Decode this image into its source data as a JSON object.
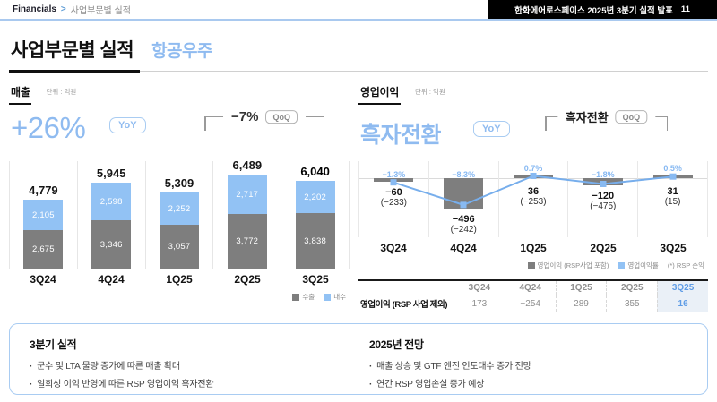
{
  "header": {
    "breadcrumb": {
      "root": "Financials",
      "separator": ">",
      "current": "사업부문별 실적"
    },
    "deck_title": "한화에어로스페이스 2025년 3분기 실적 발표",
    "page_number": "11"
  },
  "title": {
    "main": "사업부문별 실적",
    "segment": "항공우주"
  },
  "colors": {
    "accent_blue": "#8FBBF0",
    "bar_blue": "#92C2F4",
    "bar_gray": "#7E7E7E",
    "line_blue": "#77AEEC",
    "table_highlight_bg": "#EAF0F7",
    "table_highlight_text": "#5E9CE6"
  },
  "revenue": {
    "section_label": "매출",
    "unit_label": "단위 : 억원",
    "yoy_value": "+26%",
    "yoy_badge": "YoY",
    "qoq_value": "−7%",
    "qoq_badge": "QoQ",
    "legend": [
      {
        "label": "수출",
        "color": "#7E7E7E"
      },
      {
        "label": "내수",
        "color": "#92C2F4"
      }
    ]
  },
  "profit": {
    "section_label": "영업이익",
    "unit_label": "단위 : 억원",
    "yoy_value": "흑자전환",
    "yoy_badge": "YoY",
    "qoq_value": "흑자전환",
    "qoq_badge": "QoQ",
    "legend": [
      {
        "label": "영업이익 (RSP사업 포함)",
        "color": "#7E7E7E"
      },
      {
        "label": "영업이익률",
        "color": "#92C2F4"
      },
      {
        "label": "(*) RSP 손익",
        "color": null
      }
    ],
    "table": {
      "row_label": "영업이익 (RSP 사업 제외)",
      "columns": [
        "3Q24",
        "4Q24",
        "1Q25",
        "2Q25",
        "3Q25"
      ],
      "values": [
        "173",
        "−254",
        "289",
        "355",
        "16"
      ],
      "highlight_index": 4
    }
  },
  "chart_data": [
    {
      "id": "revenue",
      "type": "bar",
      "stacked": true,
      "title": "매출",
      "unit": "억원",
      "yoy": "+26%",
      "qoq": "−7%",
      "categories": [
        "3Q24",
        "4Q24",
        "1Q25",
        "2Q25",
        "3Q25"
      ],
      "series": [
        {
          "name": "수출",
          "values": [
            2675,
            3346,
            3057,
            3772,
            3838
          ],
          "color": "#7E7E7E"
        },
        {
          "name": "내수",
          "values": [
            2105,
            2598,
            2252,
            2717,
            2202
          ],
          "color": "#92C2F4"
        }
      ],
      "totals": [
        4779,
        5945,
        5309,
        6489,
        6040
      ],
      "highlight_last": true,
      "legend_position": "bottom-right",
      "grid": "vertical-separators"
    },
    {
      "id": "operating-profit",
      "type": "bar",
      "title": "영업이익",
      "unit": "억원",
      "yoy": "흑자전환",
      "qoq": "흑자전환",
      "categories": [
        "3Q24",
        "4Q24",
        "1Q25",
        "2Q25",
        "3Q25"
      ],
      "series": [
        {
          "name": "영업이익 (RSP사업 포함)",
          "type": "bar",
          "values": [
            -60,
            -496,
            36,
            -120,
            31
          ],
          "color": "#7E7E7E"
        },
        {
          "name": "영업이익률",
          "type": "line",
          "values_pct": [
            -1.3,
            -8.3,
            0.7,
            -1.8,
            0.5
          ],
          "color": "#77AEEC"
        },
        {
          "name": "(*) RSP 손익",
          "type": "annotation",
          "values": [
            -233,
            -242,
            -253,
            -475,
            15
          ]
        }
      ],
      "bar_labels": [
        "−60",
        "−496",
        "36",
        "−120",
        "31"
      ],
      "annotation_labels": [
        "(−233)",
        "(−242)",
        "(−253)",
        "(−475)",
        "(15)"
      ],
      "pct_labels": [
        "−1.3%",
        "−8.3%",
        "0.7%",
        "−1.8%",
        "0.5%"
      ],
      "legend_position": "bottom-right",
      "grid": "vertical-separators"
    }
  ],
  "footer": {
    "left": {
      "title": "3분기 실적",
      "bullets": [
        "군수 및 LTA 물량 증가에 따른 매출 확대",
        "일회성 이익 반영에 따른 RSP 영업이익 흑자전환"
      ]
    },
    "right": {
      "title": "2025년 전망",
      "bullets": [
        "매출 상승 및 GTF 엔진 인도대수 증가 전망",
        "연간 RSP 영업손실 증가 예상"
      ]
    }
  }
}
